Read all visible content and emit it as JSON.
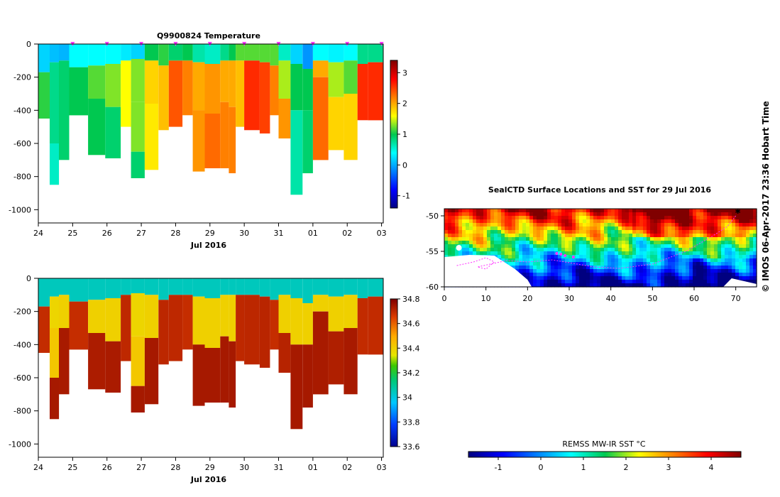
{
  "chart_data": [
    {
      "type": "heatmap",
      "title": "Q9900824  Temperature",
      "xlabel": "Jul 2016",
      "ylabel": "",
      "x_tick_labels": [
        "24",
        "25",
        "26",
        "27",
        "28",
        "29",
        "30",
        "31",
        "01",
        "02",
        "03"
      ],
      "x_range_days": [
        24,
        34.05
      ],
      "ylim": [
        -1080,
        0
      ],
      "y_ticks": [
        0,
        -200,
        -400,
        -600,
        -800,
        -1000
      ],
      "colorbar": {
        "min": -1.4,
        "max": 3.4,
        "ticks": [
          -1,
          0,
          1,
          2,
          3
        ]
      },
      "profile_markers_at_day": [
        25,
        26,
        27,
        28,
        29,
        30,
        31,
        32,
        33,
        34
      ],
      "columns": [
        {
          "start": 24.0,
          "end": 24.33,
          "bottom": 450,
          "values": [
            {
              "to": 170,
              "v": 0.2
            },
            {
              "to": 450,
              "v": 1.1
            }
          ]
        },
        {
          "start": 24.33,
          "end": 24.6,
          "bottom": 850,
          "values": [
            {
              "to": 110,
              "v": 0.1
            },
            {
              "to": 300,
              "v": 0.8
            },
            {
              "to": 600,
              "v": 0.8
            },
            {
              "to": 850,
              "v": 0.6
            }
          ]
        },
        {
          "start": 24.6,
          "end": 24.9,
          "bottom": 700,
          "values": [
            {
              "to": 100,
              "v": 0.05
            },
            {
              "to": 300,
              "v": 0.9
            },
            {
              "to": 700,
              "v": 0.9
            }
          ]
        },
        {
          "start": 24.9,
          "end": 25.45,
          "bottom": 430,
          "values": [
            {
              "to": 140,
              "v": 0.4
            },
            {
              "to": 430,
              "v": 1.0
            }
          ]
        },
        {
          "start": 25.45,
          "end": 25.95,
          "bottom": 670,
          "values": [
            {
              "to": 130,
              "v": 0.4
            },
            {
              "to": 330,
              "v": 1.2
            },
            {
              "to": 670,
              "v": 1.0
            }
          ]
        },
        {
          "start": 25.95,
          "end": 26.4,
          "bottom": 690,
          "values": [
            {
              "to": 120,
              "v": 0.4
            },
            {
              "to": 380,
              "v": 1.3
            },
            {
              "to": 690,
              "v": 0.9
            }
          ]
        },
        {
          "start": 26.4,
          "end": 26.7,
          "bottom": 500,
          "values": [
            {
              "to": 100,
              "v": 0.3
            },
            {
              "to": 500,
              "v": 1.6
            }
          ]
        },
        {
          "start": 26.7,
          "end": 27.1,
          "bottom": 810,
          "values": [
            {
              "to": 90,
              "v": 0.2
            },
            {
              "to": 350,
              "v": 1.3
            },
            {
              "to": 650,
              "v": 1.3
            },
            {
              "to": 810,
              "v": 0.9
            }
          ]
        },
        {
          "start": 27.1,
          "end": 27.5,
          "bottom": 760,
          "values": [
            {
              "to": 100,
              "v": 1.0
            },
            {
              "to": 360,
              "v": 1.8
            },
            {
              "to": 760,
              "v": 1.7
            }
          ]
        },
        {
          "start": 27.5,
          "end": 27.8,
          "bottom": 520,
          "values": [
            {
              "to": 130,
              "v": 1.1
            },
            {
              "to": 520,
              "v": 1.9
            }
          ]
        },
        {
          "start": 27.8,
          "end": 28.2,
          "bottom": 500,
          "values": [
            {
              "to": 100,
              "v": 0.9
            },
            {
              "to": 500,
              "v": 2.4
            }
          ]
        },
        {
          "start": 28.2,
          "end": 28.5,
          "bottom": 430,
          "values": [
            {
              "to": 100,
              "v": 1.0
            },
            {
              "to": 430,
              "v": 2.2
            }
          ]
        },
        {
          "start": 28.5,
          "end": 28.85,
          "bottom": 770,
          "values": [
            {
              "to": 110,
              "v": 0.7
            },
            {
              "to": 400,
              "v": 2.0
            },
            {
              "to": 770,
              "v": 2.1
            }
          ]
        },
        {
          "start": 28.85,
          "end": 29.3,
          "bottom": 750,
          "values": [
            {
              "to": 120,
              "v": 0.6
            },
            {
              "to": 420,
              "v": 2.1
            },
            {
              "to": 750,
              "v": 2.3
            }
          ]
        },
        {
          "start": 29.3,
          "end": 29.55,
          "bottom": 750,
          "values": [
            {
              "to": 100,
              "v": 0.8
            },
            {
              "to": 350,
              "v": 2.0
            },
            {
              "to": 750,
              "v": 2.2
            }
          ]
        },
        {
          "start": 29.55,
          "end": 29.75,
          "bottom": 780,
          "values": [
            {
              "to": 100,
              "v": 1.0
            },
            {
              "to": 380,
              "v": 2.0
            },
            {
              "to": 780,
              "v": 2.2
            }
          ]
        },
        {
          "start": 29.75,
          "end": 30.0,
          "bottom": 500,
          "values": [
            {
              "to": 100,
              "v": 1.2
            },
            {
              "to": 500,
              "v": 1.9
            }
          ]
        },
        {
          "start": 30.0,
          "end": 30.45,
          "bottom": 520,
          "values": [
            {
              "to": 100,
              "v": 1.2
            },
            {
              "to": 520,
              "v": 2.6
            }
          ]
        },
        {
          "start": 30.45,
          "end": 30.75,
          "bottom": 540,
          "values": [
            {
              "to": 110,
              "v": 1.2
            },
            {
              "to": 540,
              "v": 2.5
            }
          ]
        },
        {
          "start": 30.75,
          "end": 31.0,
          "bottom": 430,
          "values": [
            {
              "to": 130,
              "v": 1.2
            },
            {
              "to": 430,
              "v": 2.2
            }
          ]
        },
        {
          "start": 31.0,
          "end": 31.35,
          "bottom": 570,
          "values": [
            {
              "to": 100,
              "v": 0.6
            },
            {
              "to": 330,
              "v": 1.4
            },
            {
              "to": 570,
              "v": 2.1
            }
          ]
        },
        {
          "start": 31.35,
          "end": 31.7,
          "bottom": 910,
          "values": [
            {
              "to": 120,
              "v": 0.2
            },
            {
              "to": 400,
              "v": 1.0
            },
            {
              "to": 910,
              "v": 0.7
            }
          ]
        },
        {
          "start": 31.7,
          "end": 32.0,
          "bottom": 780,
          "values": [
            {
              "to": 150,
              "v": -0.1
            },
            {
              "to": 400,
              "v": 1.0
            },
            {
              "to": 780,
              "v": 0.9
            }
          ]
        },
        {
          "start": 32.0,
          "end": 32.45,
          "bottom": 700,
          "values": [
            {
              "to": 100,
              "v": 0.4
            },
            {
              "to": 200,
              "v": 2.0
            },
            {
              "to": 700,
              "v": 2.3
            }
          ]
        },
        {
          "start": 32.45,
          "end": 32.9,
          "bottom": 640,
          "values": [
            {
              "to": 110,
              "v": 0.35
            },
            {
              "to": 320,
              "v": 1.4
            },
            {
              "to": 640,
              "v": 1.8
            }
          ]
        },
        {
          "start": 32.9,
          "end": 33.3,
          "bottom": 700,
          "values": [
            {
              "to": 100,
              "v": 0.4
            },
            {
              "to": 300,
              "v": 1.2
            },
            {
              "to": 700,
              "v": 1.8
            }
          ]
        },
        {
          "start": 33.3,
          "end": 33.6,
          "bottom": 460,
          "values": [
            {
              "to": 120,
              "v": 0.8
            },
            {
              "to": 460,
              "v": 2.6
            }
          ]
        },
        {
          "start": 33.6,
          "end": 34.05,
          "bottom": 460,
          "values": [
            {
              "to": 110,
              "v": 0.8
            },
            {
              "to": 460,
              "v": 2.6
            }
          ]
        }
      ]
    },
    {
      "type": "heatmap",
      "title": "",
      "xlabel": "Jul 2016",
      "ylabel": "",
      "x_tick_labels": [
        "24",
        "25",
        "26",
        "27",
        "28",
        "29",
        "30",
        "31",
        "01",
        "02",
        "03"
      ],
      "x_range_days": [
        24,
        34.05
      ],
      "ylim": [
        -1080,
        0
      ],
      "y_ticks": [
        0,
        -200,
        -400,
        -600,
        -800,
        -1000
      ],
      "colorbar": {
        "min": 33.6,
        "max": 34.8,
        "ticks": [
          33.6,
          33.8,
          34,
          34.2,
          34.4,
          34.6,
          34.8
        ]
      },
      "columns_shared_with": "temperature"
    },
    {
      "type": "heatmap",
      "title": "SealCTD Surface Locations and SST for 29 Jul 2016",
      "xlabel": "",
      "ylabel": "",
      "x_ticks": [
        0,
        10,
        20,
        30,
        40,
        50,
        60,
        70
      ],
      "y_ticks": [
        -50,
        -55,
        -60
      ],
      "xlim": [
        0,
        75
      ],
      "ylim": [
        -60,
        -49
      ],
      "colorbar": {
        "title": "REMSS MW-IR SST °C",
        "min": -1.7,
        "max": 4.7,
        "ticks": [
          -1,
          0,
          1,
          2,
          3,
          4
        ]
      },
      "track_color": "#ff33ff"
    }
  ],
  "timestamp": "© IMOS 06-Apr-2017 23:36 Hobart Time"
}
